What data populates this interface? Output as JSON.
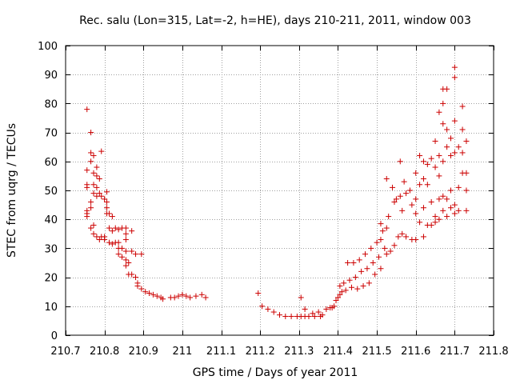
{
  "chart_data": {
    "type": "scatter",
    "title": "Rec. salu (Lon=315, Lat=-2, h=HE), days 210-211, 2011, window 003",
    "xlabel": "GPS time / Days of year 2011",
    "ylabel": "STEC from uqrg / TECUs",
    "xlim": [
      210.7,
      211.8
    ],
    "ylim": [
      0,
      100
    ],
    "xticks": [
      210.7,
      210.8,
      210.9,
      211,
      211.1,
      211.2,
      211.3,
      211.4,
      211.5,
      211.6,
      211.7,
      211.8
    ],
    "xtick_labels": [
      "210.7",
      "210.8",
      "210.9",
      "211",
      "211.1",
      "211.2",
      "211.3",
      "211.4",
      "211.5",
      "211.6",
      "211.7",
      "211.8"
    ],
    "yticks": [
      0,
      10,
      20,
      30,
      40,
      50,
      60,
      70,
      80,
      90,
      100
    ],
    "ytick_labels": [
      "0",
      "10",
      "20",
      "30",
      "40",
      "50",
      "60",
      "70",
      "80",
      "90",
      "100"
    ],
    "grid": true,
    "marker": "+",
    "marker_color": "#cc0000",
    "series": [
      {
        "name": "STEC",
        "points": [
          [
            210.755,
            78
          ],
          [
            210.755,
            57
          ],
          [
            210.755,
            52
          ],
          [
            210.755,
            51
          ],
          [
            210.755,
            43
          ],
          [
            210.755,
            41
          ],
          [
            210.755,
            42
          ],
          [
            210.765,
            70
          ],
          [
            210.765,
            63
          ],
          [
            210.765,
            60
          ],
          [
            210.765,
            46
          ],
          [
            210.765,
            44
          ],
          [
            210.765,
            37
          ],
          [
            210.772,
            62
          ],
          [
            210.772,
            56
          ],
          [
            210.772,
            52
          ],
          [
            210.772,
            49
          ],
          [
            210.772,
            38
          ],
          [
            210.772,
            35
          ],
          [
            210.78,
            58
          ],
          [
            210.78,
            55
          ],
          [
            210.78,
            51
          ],
          [
            210.78,
            48
          ],
          [
            210.78,
            34
          ],
          [
            210.787,
            54
          ],
          [
            210.787,
            49
          ],
          [
            210.787,
            33
          ],
          [
            210.792,
            63.5
          ],
          [
            210.792,
            48
          ],
          [
            210.792,
            34
          ],
          [
            210.8,
            47
          ],
          [
            210.8,
            34
          ],
          [
            210.8,
            33
          ],
          [
            210.806,
            49.5
          ],
          [
            210.806,
            46
          ],
          [
            210.806,
            44
          ],
          [
            210.806,
            42
          ],
          [
            210.812,
            42
          ],
          [
            210.812,
            37
          ],
          [
            210.812,
            32
          ],
          [
            210.82,
            41
          ],
          [
            210.82,
            36
          ],
          [
            210.82,
            31.5
          ],
          [
            210.828,
            37
          ],
          [
            210.828,
            32
          ],
          [
            210.836,
            36.5
          ],
          [
            210.836,
            32
          ],
          [
            210.836,
            30
          ],
          [
            210.836,
            28
          ],
          [
            210.845,
            37
          ],
          [
            210.845,
            30
          ],
          [
            210.845,
            27
          ],
          [
            210.855,
            37
          ],
          [
            210.855,
            35
          ],
          [
            210.855,
            33
          ],
          [
            210.855,
            29
          ],
          [
            210.855,
            26
          ],
          [
            210.855,
            24
          ],
          [
            210.862,
            25
          ],
          [
            210.862,
            21
          ],
          [
            210.87,
            36
          ],
          [
            210.87,
            29
          ],
          [
            210.87,
            21
          ],
          [
            210.88,
            28
          ],
          [
            210.88,
            20
          ],
          [
            210.885,
            18
          ],
          [
            210.885,
            17
          ],
          [
            210.895,
            28
          ],
          [
            210.895,
            16
          ],
          [
            210.905,
            15
          ],
          [
            210.915,
            14.5
          ],
          [
            210.925,
            14
          ],
          [
            210.935,
            13.5
          ],
          [
            210.945,
            13
          ],
          [
            210.95,
            12.5
          ],
          [
            210.97,
            13
          ],
          [
            210.98,
            13
          ],
          [
            210.99,
            13.5
          ],
          [
            211.0,
            14
          ],
          [
            211.01,
            13.5
          ],
          [
            211.02,
            13
          ],
          [
            211.035,
            13.5
          ],
          [
            211.05,
            14
          ],
          [
            211.06,
            13
          ],
          [
            211.195,
            14.5
          ],
          [
            211.205,
            10
          ],
          [
            211.22,
            9
          ],
          [
            211.235,
            8
          ],
          [
            211.25,
            7
          ],
          [
            211.265,
            6.5
          ],
          [
            211.28,
            6.5
          ],
          [
            211.295,
            6.5
          ],
          [
            211.305,
            6.5
          ],
          [
            211.305,
            13
          ],
          [
            211.315,
            6.5
          ],
          [
            211.315,
            9
          ],
          [
            211.325,
            6.5
          ],
          [
            211.335,
            7.5
          ],
          [
            211.34,
            6.5
          ],
          [
            211.35,
            8
          ],
          [
            211.355,
            6.5
          ],
          [
            211.36,
            7
          ],
          [
            211.37,
            9
          ],
          [
            211.38,
            9.5
          ],
          [
            211.385,
            9.5
          ],
          [
            211.39,
            10
          ],
          [
            211.395,
            12
          ],
          [
            211.4,
            13
          ],
          [
            211.405,
            17
          ],
          [
            211.405,
            14
          ],
          [
            211.41,
            15
          ],
          [
            211.415,
            18
          ],
          [
            211.42,
            15.5
          ],
          [
            211.425,
            25
          ],
          [
            211.43,
            19
          ],
          [
            211.435,
            16.5
          ],
          [
            211.44,
            25
          ],
          [
            211.445,
            20
          ],
          [
            211.45,
            16
          ],
          [
            211.455,
            26
          ],
          [
            211.46,
            22
          ],
          [
            211.465,
            17
          ],
          [
            211.47,
            28
          ],
          [
            211.475,
            23
          ],
          [
            211.48,
            18
          ],
          [
            211.485,
            30
          ],
          [
            211.49,
            25
          ],
          [
            211.495,
            21
          ],
          [
            211.5,
            32
          ],
          [
            211.505,
            27
          ],
          [
            211.51,
            38.5
          ],
          [
            211.51,
            33
          ],
          [
            211.51,
            23
          ],
          [
            211.515,
            36
          ],
          [
            211.52,
            30
          ],
          [
            211.525,
            54
          ],
          [
            211.525,
            37
          ],
          [
            211.525,
            28
          ],
          [
            211.53,
            41
          ],
          [
            211.535,
            29
          ],
          [
            211.54,
            51
          ],
          [
            211.545,
            46
          ],
          [
            211.545,
            31
          ],
          [
            211.55,
            47
          ],
          [
            211.555,
            34
          ],
          [
            211.56,
            60
          ],
          [
            211.56,
            48
          ],
          [
            211.565,
            43
          ],
          [
            211.565,
            35
          ],
          [
            211.57,
            53
          ],
          [
            211.575,
            49
          ],
          [
            211.575,
            34
          ],
          [
            211.585,
            50
          ],
          [
            211.59,
            45
          ],
          [
            211.59,
            33
          ],
          [
            211.6,
            56
          ],
          [
            211.6,
            47
          ],
          [
            211.6,
            42
          ],
          [
            211.6,
            33
          ],
          [
            211.61,
            62
          ],
          [
            211.61,
            52
          ],
          [
            211.61,
            39
          ],
          [
            211.62,
            60
          ],
          [
            211.62,
            54
          ],
          [
            211.62,
            44
          ],
          [
            211.62,
            34
          ],
          [
            211.63,
            59
          ],
          [
            211.63,
            52
          ],
          [
            211.63,
            38
          ],
          [
            211.64,
            61
          ],
          [
            211.64,
            46
          ],
          [
            211.64,
            38
          ],
          [
            211.65,
            67
          ],
          [
            211.65,
            58
          ],
          [
            211.65,
            41
          ],
          [
            211.65,
            39
          ],
          [
            211.66,
            77
          ],
          [
            211.66,
            62
          ],
          [
            211.66,
            55
          ],
          [
            211.66,
            47
          ],
          [
            211.66,
            40
          ],
          [
            211.67,
            85
          ],
          [
            211.67,
            80
          ],
          [
            211.67,
            73
          ],
          [
            211.67,
            60
          ],
          [
            211.67,
            48
          ],
          [
            211.67,
            43
          ],
          [
            211.68,
            85
          ],
          [
            211.68,
            71
          ],
          [
            211.68,
            65
          ],
          [
            211.68,
            47
          ],
          [
            211.68,
            41
          ],
          [
            211.69,
            68
          ],
          [
            211.69,
            62
          ],
          [
            211.69,
            50
          ],
          [
            211.69,
            44
          ],
          [
            211.7,
            92.5
          ],
          [
            211.7,
            89
          ],
          [
            211.7,
            74
          ],
          [
            211.7,
            63
          ],
          [
            211.7,
            45
          ],
          [
            211.7,
            42
          ],
          [
            211.71,
            65
          ],
          [
            211.71,
            51
          ],
          [
            211.71,
            43
          ],
          [
            211.72,
            79
          ],
          [
            211.72,
            71
          ],
          [
            211.72,
            63
          ],
          [
            211.72,
            56
          ],
          [
            211.73,
            67
          ],
          [
            211.73,
            56
          ],
          [
            211.73,
            50
          ],
          [
            211.73,
            43
          ]
        ]
      }
    ]
  }
}
